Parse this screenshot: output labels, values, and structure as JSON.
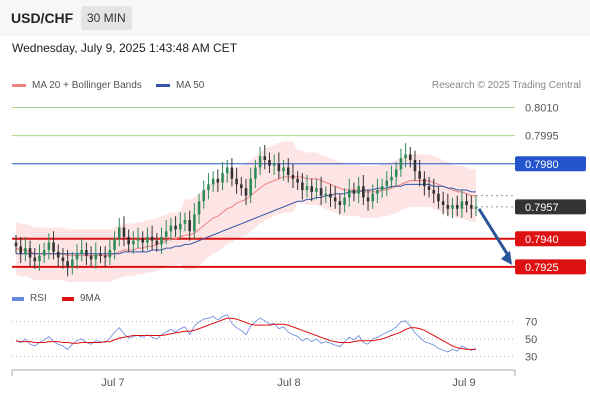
{
  "header": {
    "symbol": "USD/CHF",
    "timeframe": "30 MIN",
    "datetime": "Wednesday, July 9, 2025 1:43:48 AM CET"
  },
  "legend": {
    "ma20_label": "MA 20 + Bollinger Bands",
    "ma50_label": "MA 50",
    "copyright": "Research © 2025 Trading Central",
    "rsi_label": "RSI",
    "rsi_ma_label": "9MA"
  },
  "colors": {
    "ma20": "#f08080",
    "ma50": "#3355aa",
    "band_fill": "#fde0e0",
    "resistance_green": "#a8d48a",
    "pivot_blue": "#2255cc",
    "support_red": "#dd1111",
    "current_dark": "#333333",
    "candle_up": "#2e8b57",
    "candle_down": "#333333",
    "arrow": "#2a5599",
    "rsi": "#6688dd",
    "rsi_ma": "#dd1111"
  },
  "chart_data": {
    "type": "candlestick",
    "symbol": "USD/CHF",
    "timeframe": "30 MIN",
    "x_labels": [
      "Jul 7",
      "Jul 8",
      "Jul 9"
    ],
    "ylim": [
      0.7918,
      0.8014
    ],
    "current_price": "0.7957",
    "levels": [
      {
        "label": "0.8010",
        "value": 0.801,
        "kind": "resistance"
      },
      {
        "label": "0.7995",
        "value": 0.7995,
        "kind": "resistance"
      },
      {
        "label": "0.7980",
        "value": 0.798,
        "kind": "pivot"
      },
      {
        "label": "0.7940",
        "value": 0.794,
        "kind": "support"
      },
      {
        "label": "0.7925",
        "value": 0.7925,
        "kind": "support"
      }
    ],
    "forecast": {
      "from": 0.7957,
      "to": 0.7925,
      "direction": "down"
    },
    "closes": [
      0.7936,
      0.7932,
      0.7935,
      0.793,
      0.7928,
      0.7931,
      0.7934,
      0.7938,
      0.7933,
      0.793,
      0.7928,
      0.7925,
      0.7929,
      0.7932,
      0.7934,
      0.7931,
      0.7929,
      0.7932,
      0.7931,
      0.793,
      0.7934,
      0.794,
      0.7946,
      0.7941,
      0.7937,
      0.7939,
      0.794,
      0.7938,
      0.7941,
      0.7939,
      0.7937,
      0.7941,
      0.7944,
      0.7947,
      0.7945,
      0.7948,
      0.795,
      0.7944,
      0.7953,
      0.796,
      0.7966,
      0.7969,
      0.7972,
      0.797,
      0.7975,
      0.7978,
      0.7972,
      0.7969,
      0.7967,
      0.7963,
      0.7972,
      0.7978,
      0.7984,
      0.7982,
      0.7979,
      0.798,
      0.7976,
      0.7978,
      0.7974,
      0.7972,
      0.797,
      0.7966,
      0.7968,
      0.7965,
      0.7967,
      0.7963,
      0.7964,
      0.7962,
      0.796,
      0.7958,
      0.7962,
      0.7966,
      0.7964,
      0.7968,
      0.7962,
      0.796,
      0.7964,
      0.7966,
      0.7968,
      0.7971,
      0.7973,
      0.7977,
      0.7983,
      0.7985,
      0.7982,
      0.7976,
      0.7972,
      0.7968,
      0.7966,
      0.7964,
      0.796,
      0.7958,
      0.7956,
      0.7958,
      0.7956,
      0.796,
      0.7958,
      0.7956,
      0.7957
    ],
    "ma20": [
      0.7935,
      0.7934,
      0.7934,
      0.7933,
      0.7932,
      0.7932,
      0.7932,
      0.7932,
      0.7932,
      0.7932,
      0.7932,
      0.7931,
      0.7931,
      0.7931,
      0.7931,
      0.7931,
      0.7931,
      0.7931,
      0.7931,
      0.7931,
      0.7931,
      0.7932,
      0.7933,
      0.7934,
      0.7934,
      0.7934,
      0.7935,
      0.7935,
      0.7936,
      0.7936,
      0.7937,
      0.7938,
      0.7939,
      0.794,
      0.794,
      0.7941,
      0.7942,
      0.7942,
      0.7943,
      0.7945,
      0.7947,
      0.7949,
      0.7951,
      0.7952,
      0.7954,
      0.7956,
      0.7957,
      0.7959,
      0.796,
      0.7961,
      0.7963,
      0.7965,
      0.7967,
      0.7969,
      0.797,
      0.7971,
      0.7972,
      0.7973,
      0.7973,
      0.7973,
      0.7973,
      0.7973,
      0.7972,
      0.7972,
      0.7972,
      0.7971,
      0.797,
      0.7969,
      0.7968,
      0.7967,
      0.7966,
      0.7966,
      0.7966,
      0.7966,
      0.7965,
      0.7965,
      0.7965,
      0.7965,
      0.7966,
      0.7966,
      0.7967,
      0.7968,
      0.7969,
      0.797,
      0.7971,
      0.7971,
      0.7971,
      0.7971,
      0.7971,
      0.797,
      0.7969,
      0.7968,
      0.7967,
      0.7966,
      0.7965,
      0.7965,
      0.7964,
      0.7963,
      0.7963
    ],
    "ma50": [
      0.7932,
      0.7932,
      0.7932,
      0.7932,
      0.7932,
      0.7932,
      0.7932,
      0.7932,
      0.7932,
      0.7932,
      0.7932,
      0.7932,
      0.7932,
      0.7932,
      0.7932,
      0.7932,
      0.7932,
      0.7932,
      0.7932,
      0.7932,
      0.7932,
      0.7932,
      0.7932,
      0.7933,
      0.7933,
      0.7933,
      0.7933,
      0.7933,
      0.7933,
      0.7934,
      0.7934,
      0.7934,
      0.7935,
      0.7935,
      0.7936,
      0.7936,
      0.7937,
      0.7937,
      0.7938,
      0.7939,
      0.794,
      0.7941,
      0.7942,
      0.7943,
      0.7944,
      0.7945,
      0.7946,
      0.7947,
      0.7948,
      0.7949,
      0.795,
      0.7951,
      0.7952,
      0.7953,
      0.7954,
      0.7955,
      0.7956,
      0.7957,
      0.7958,
      0.7959,
      0.796,
      0.796,
      0.7961,
      0.7961,
      0.7962,
      0.7962,
      0.7963,
      0.7963,
      0.7964,
      0.7964,
      0.7964,
      0.7965,
      0.7965,
      0.7965,
      0.7966,
      0.7966,
      0.7966,
      0.7967,
      0.7967,
      0.7967,
      0.7968,
      0.7968,
      0.7968,
      0.7969,
      0.7969,
      0.7969,
      0.7969,
      0.7969,
      0.7969,
      0.7968,
      0.7968,
      0.7968,
      0.7967,
      0.7967,
      0.7966,
      0.7966,
      0.7966,
      0.7965,
      0.7965
    ],
    "rsi": {
      "ticks": [
        70,
        50,
        30
      ],
      "ylim": [
        20,
        80
      ],
      "values": [
        48,
        46,
        50,
        44,
        42,
        46,
        49,
        53,
        47,
        44,
        42,
        38,
        44,
        48,
        50,
        46,
        44,
        48,
        47,
        46,
        51,
        58,
        63,
        56,
        51,
        53,
        54,
        52,
        55,
        52,
        50,
        55,
        58,
        61,
        58,
        62,
        64,
        55,
        65,
        70,
        73,
        74,
        76,
        72,
        76,
        78,
        68,
        63,
        60,
        55,
        65,
        70,
        74,
        71,
        67,
        68,
        62,
        64,
        58,
        55,
        53,
        48,
        51,
        47,
        50,
        45,
        47,
        45,
        43,
        41,
        47,
        52,
        49,
        54,
        46,
        44,
        50,
        52,
        55,
        58,
        60,
        64,
        70,
        71,
        65,
        57,
        52,
        47,
        45,
        43,
        39,
        37,
        35,
        38,
        36,
        42,
        39,
        37,
        39
      ],
      "ma9": [
        48,
        47,
        47,
        47,
        46,
        46,
        46,
        47,
        47,
        47,
        46,
        46,
        45,
        45,
        46,
        46,
        46,
        46,
        46,
        47,
        47,
        49,
        51,
        52,
        53,
        54,
        54,
        54,
        54,
        54,
        54,
        54,
        55,
        56,
        57,
        58,
        59,
        59,
        60,
        62,
        64,
        66,
        68,
        70,
        72,
        74,
        74,
        73,
        71,
        69,
        67,
        66,
        66,
        66,
        66,
        67,
        67,
        67,
        66,
        64,
        62,
        60,
        58,
        56,
        54,
        52,
        50,
        48,
        47,
        46,
        46,
        46,
        47,
        48,
        48,
        48,
        48,
        49,
        50,
        52,
        54,
        56,
        58,
        61,
        63,
        63,
        62,
        60,
        57,
        54,
        51,
        48,
        45,
        42,
        40,
        39,
        38,
        38,
        38
      ]
    }
  }
}
